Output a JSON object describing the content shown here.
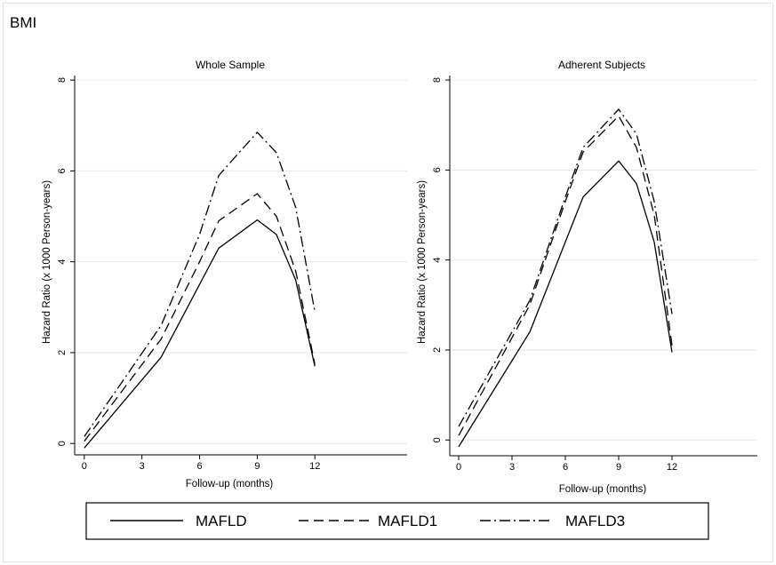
{
  "figure_title": "BMI",
  "legend": {
    "entries": [
      {
        "label": "MAFLD",
        "style": "solid"
      },
      {
        "label": "MAFLD1",
        "style": "dash"
      },
      {
        "label": "MAFLD3",
        "style": "dashdot"
      }
    ]
  },
  "chart_data": [
    {
      "type": "line",
      "title": "Whole Sample",
      "xlabel": "Follow-up (months)",
      "ylabel": "Hazard Ratio (x 1000  Person-years)",
      "xticks": [
        0,
        3,
        6,
        9,
        12
      ],
      "yticks": [
        0,
        2,
        4,
        6,
        8
      ],
      "xlim": [
        -0.5,
        16.8
      ],
      "ylim": [
        -0.25,
        8.1
      ],
      "grid": true,
      "x": [
        0,
        4,
        6,
        7,
        9,
        10,
        11,
        12
      ],
      "series": [
        {
          "name": "MAFLD",
          "style": "solid",
          "values": [
            -0.1,
            1.9,
            3.5,
            4.3,
            4.92,
            4.6,
            3.6,
            1.7
          ]
        },
        {
          "name": "MAFLD1",
          "style": "dash",
          "values": [
            0.05,
            2.3,
            4.0,
            4.9,
            5.5,
            5.0,
            3.8,
            1.75
          ]
        },
        {
          "name": "MAFLD3",
          "style": "dashdot",
          "values": [
            0.15,
            2.6,
            4.6,
            5.9,
            6.85,
            6.4,
            5.2,
            2.9
          ]
        }
      ]
    },
    {
      "type": "line",
      "title": "Adherent Subjects",
      "xlabel": "Follow-up (months)",
      "ylabel": "Hazard Ratio (x 1000  Person-years)",
      "xticks": [
        0,
        3,
        6,
        9,
        12
      ],
      "yticks": [
        0,
        2,
        4,
        6,
        8
      ],
      "xlim": [
        -0.5,
        16.8
      ],
      "ylim": [
        -0.35,
        8.1
      ],
      "grid": true,
      "x": [
        0,
        4,
        6,
        7,
        9,
        10,
        11,
        12
      ],
      "series": [
        {
          "name": "MAFLD",
          "style": "solid",
          "values": [
            -0.15,
            2.4,
            4.4,
            5.4,
            6.2,
            5.7,
            4.4,
            1.95
          ]
        },
        {
          "name": "MAFLD1",
          "style": "dash",
          "values": [
            0.1,
            3.0,
            5.3,
            6.4,
            7.2,
            6.5,
            5.0,
            2.1
          ]
        },
        {
          "name": "MAFLD3",
          "style": "dashdot",
          "values": [
            0.3,
            3.1,
            5.4,
            6.5,
            7.35,
            6.8,
            5.3,
            2.8
          ]
        }
      ]
    }
  ]
}
